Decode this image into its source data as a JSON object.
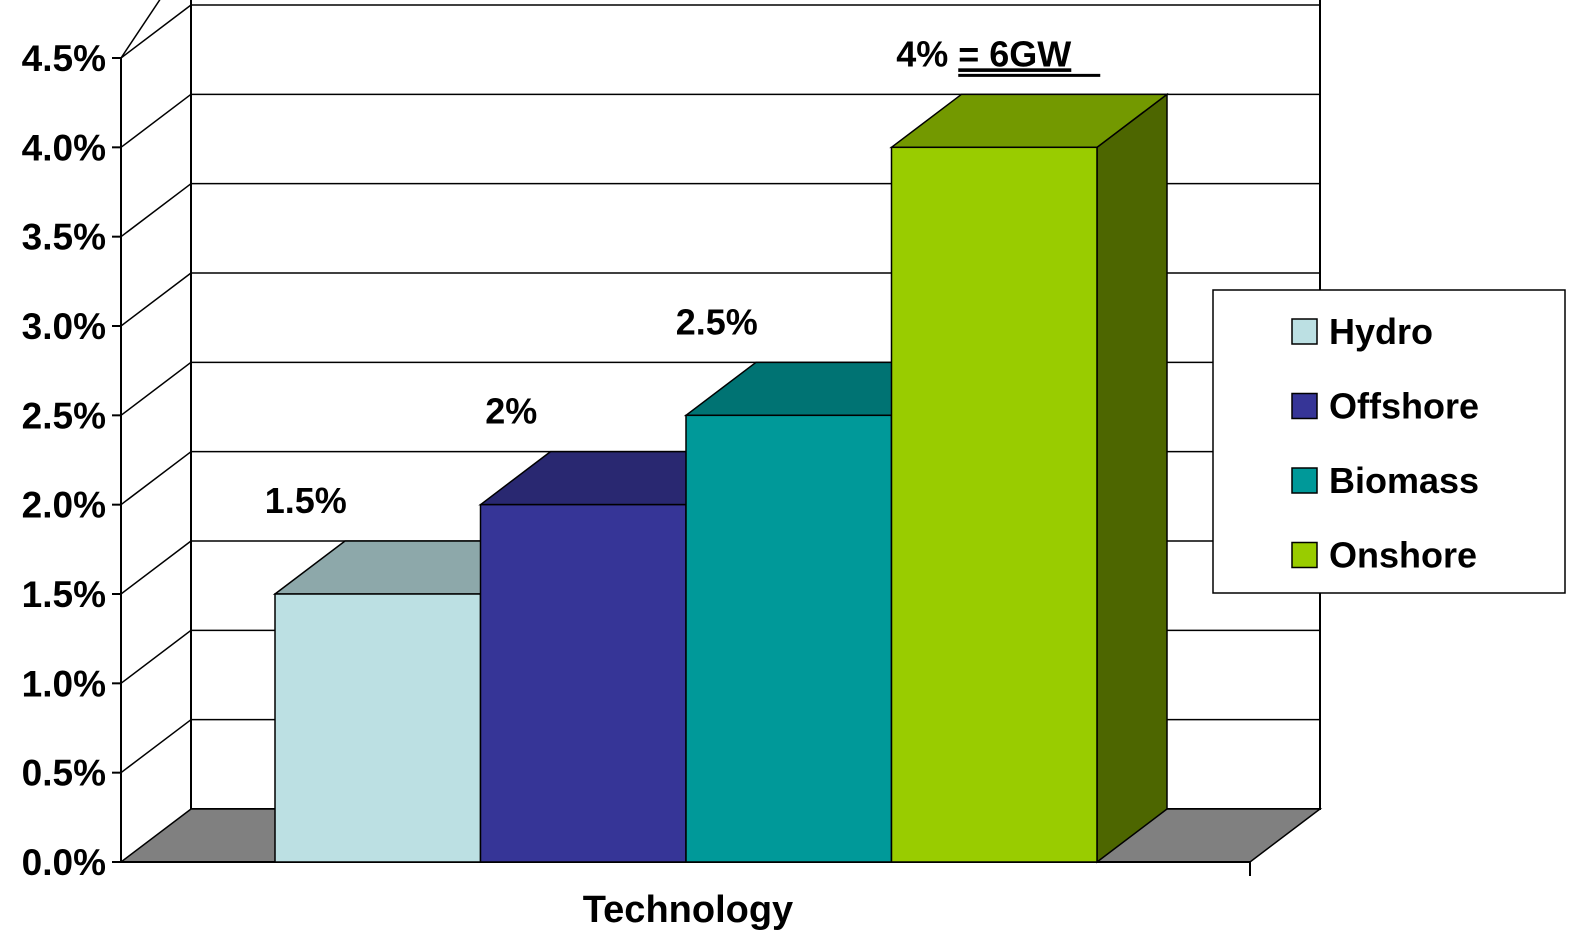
{
  "chart_data": {
    "type": "bar",
    "style": "3d-clustered-column",
    "xlabel": "Technology",
    "ylim": [
      0,
      4.5
    ],
    "yticks": [
      "0.0%",
      "0.5%",
      "1.0%",
      "1.5%",
      "2.0%",
      "2.5%",
      "3.0%",
      "3.5%",
      "4.0%",
      "4.5%"
    ],
    "grid": true,
    "legend_position": "right",
    "series": [
      {
        "name": "Hydro",
        "value": 1.5,
        "label": "1.5%",
        "color": "#BCE0E3"
      },
      {
        "name": "Offshore",
        "value": 2.0,
        "label": "2%",
        "color": "#363597"
      },
      {
        "name": "Biomass",
        "value": 2.5,
        "label": "2.5%",
        "color": "#009999"
      },
      {
        "name": "Onshore",
        "value": 4.0,
        "label": "4%",
        "label_extra": "= 6GW",
        "color": "#99CC00"
      }
    ],
    "floor_color": "#808080",
    "watermark_color": "#E6EDF8"
  }
}
